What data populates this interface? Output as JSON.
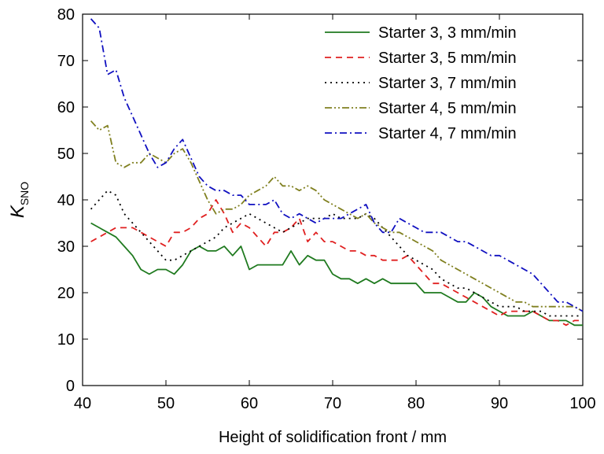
{
  "chart_data": {
    "type": "line",
    "title": "",
    "xlabel": "Height of solidification front / mm",
    "ylabel_main": "K",
    "ylabel_sub": "SNO",
    "xlim": [
      40,
      100
    ],
    "ylim": [
      0,
      80
    ],
    "xticks": [
      40,
      50,
      60,
      70,
      80,
      90,
      100
    ],
    "yticks": [
      0,
      10,
      20,
      30,
      40,
      50,
      60,
      70,
      80
    ],
    "grid": false,
    "legend_position": "top-right",
    "series": [
      {
        "name": "Starter 3, 3 mm/min",
        "color": "#1f7a1f",
        "dash": "solid",
        "x": [
          41,
          42,
          43,
          44,
          45,
          46,
          47,
          48,
          49,
          50,
          51,
          52,
          53,
          54,
          55,
          56,
          57,
          58,
          59,
          60,
          61,
          62,
          63,
          64,
          65,
          66,
          67,
          68,
          69,
          70,
          71,
          72,
          73,
          74,
          75,
          76,
          77,
          78,
          79,
          80,
          81,
          82,
          83,
          84,
          85,
          86,
          87,
          88,
          89,
          90,
          91,
          92,
          93,
          94,
          95,
          96,
          97,
          98,
          99,
          100
        ],
        "y": [
          35,
          34,
          33,
          32,
          30,
          28,
          25,
          24,
          25,
          25,
          24,
          26,
          29,
          30,
          29,
          29,
          30,
          28,
          30,
          25,
          26,
          26,
          26,
          26,
          29,
          26,
          28,
          27,
          27,
          24,
          23,
          23,
          22,
          23,
          22,
          23,
          22,
          22,
          22,
          22,
          20,
          20,
          20,
          19,
          18,
          18,
          20,
          19,
          17,
          16,
          15,
          15,
          15,
          16,
          15,
          14,
          14,
          14,
          13,
          13
        ]
      },
      {
        "name": "Starter 3, 5 mm/min",
        "color": "#e02020",
        "dash": "dash",
        "x": [
          41,
          42,
          43,
          44,
          45,
          46,
          47,
          48,
          49,
          50,
          51,
          52,
          53,
          54,
          55,
          56,
          57,
          58,
          59,
          60,
          61,
          62,
          63,
          64,
          65,
          66,
          67,
          68,
          69,
          70,
          71,
          72,
          73,
          74,
          75,
          76,
          77,
          78,
          79,
          80,
          81,
          82,
          83,
          84,
          85,
          86,
          87,
          88,
          89,
          90,
          91,
          92,
          93,
          94,
          95,
          96,
          97,
          98,
          99,
          100
        ],
        "y": [
          31,
          32,
          33,
          34,
          34,
          34,
          33,
          32,
          31,
          30,
          33,
          33,
          34,
          36,
          37,
          40,
          37,
          33,
          35,
          34,
          32,
          30,
          33,
          33,
          34,
          36,
          31,
          33,
          31,
          31,
          30,
          29,
          29,
          28,
          28,
          27,
          27,
          27,
          28,
          26,
          24,
          22,
          22,
          21,
          20,
          19,
          18,
          17,
          16,
          15,
          16,
          16,
          16,
          16,
          15,
          14,
          14,
          13,
          14,
          14
        ]
      },
      {
        "name": "Starter 3, 7 mm/min",
        "color": "#000000",
        "dash": "dot",
        "x": [
          41,
          42,
          43,
          44,
          45,
          46,
          47,
          48,
          49,
          50,
          51,
          52,
          53,
          54,
          55,
          56,
          57,
          58,
          59,
          60,
          61,
          62,
          63,
          64,
          65,
          66,
          67,
          68,
          69,
          70,
          71,
          72,
          73,
          74,
          75,
          76,
          77,
          78,
          79,
          80,
          81,
          82,
          83,
          84,
          85,
          86,
          87,
          88,
          89,
          90,
          91,
          92,
          93,
          94,
          95,
          96,
          97,
          98,
          99,
          100
        ],
        "y": [
          38,
          40,
          42,
          41,
          37,
          35,
          33,
          31,
          29,
          27,
          27,
          28,
          29,
          30,
          31,
          32,
          34,
          35,
          36,
          37,
          36,
          35,
          34,
          33,
          34,
          35,
          36,
          36,
          36,
          37,
          36,
          36,
          36,
          37,
          36,
          34,
          32,
          30,
          28,
          27,
          26,
          25,
          23,
          22,
          21,
          21,
          20,
          19,
          18,
          17,
          17,
          17,
          16,
          16,
          16,
          15,
          15,
          15,
          15,
          15
        ]
      },
      {
        "name": "Starter 4, 5 mm/min",
        "color": "#808020",
        "dash": "dashdotdot",
        "x": [
          41,
          42,
          43,
          44,
          45,
          46,
          47,
          48,
          49,
          50,
          51,
          52,
          53,
          54,
          55,
          56,
          57,
          58,
          59,
          60,
          61,
          62,
          63,
          64,
          65,
          66,
          67,
          68,
          69,
          70,
          71,
          72,
          73,
          74,
          75,
          76,
          77,
          78,
          79,
          80,
          81,
          82,
          83,
          84,
          85,
          86,
          87,
          88,
          89,
          90,
          91,
          92,
          93,
          94,
          95,
          96,
          97,
          98,
          99,
          100
        ],
        "y": [
          57,
          55,
          56,
          48,
          47,
          48,
          48,
          50,
          49,
          48,
          50,
          51,
          48,
          44,
          40,
          37,
          38,
          38,
          39,
          41,
          42,
          43,
          45,
          43,
          43,
          42,
          43,
          42,
          40,
          39,
          38,
          37,
          36,
          37,
          35,
          34,
          33,
          33,
          32,
          31,
          30,
          29,
          27,
          26,
          25,
          24,
          23,
          22,
          21,
          20,
          19,
          18,
          18,
          17,
          17,
          17,
          17,
          17,
          17,
          16
        ]
      },
      {
        "name": "Starter 4, 7 mm/min",
        "color": "#1010c0",
        "dash": "dashdot",
        "x": [
          41,
          42,
          43,
          44,
          45,
          46,
          47,
          48,
          49,
          50,
          51,
          52,
          53,
          54,
          55,
          56,
          57,
          58,
          59,
          60,
          61,
          62,
          63,
          64,
          65,
          66,
          67,
          68,
          69,
          70,
          71,
          72,
          73,
          74,
          75,
          76,
          77,
          78,
          79,
          80,
          81,
          82,
          83,
          84,
          85,
          86,
          87,
          88,
          89,
          90,
          91,
          92,
          93,
          94,
          95,
          96,
          97,
          98,
          99,
          100
        ],
        "y": [
          79,
          77,
          67,
          68,
          62,
          58,
          54,
          50,
          47,
          48,
          51,
          53,
          49,
          45,
          43,
          42,
          42,
          41,
          41,
          39,
          39,
          39,
          40,
          37,
          36,
          37,
          36,
          35,
          36,
          36,
          36,
          37,
          38,
          39,
          35,
          33,
          33,
          36,
          35,
          34,
          33,
          33,
          33,
          32,
          31,
          31,
          30,
          29,
          28,
          28,
          27,
          26,
          25,
          24,
          22,
          20,
          18,
          18,
          17,
          16
        ]
      }
    ]
  }
}
